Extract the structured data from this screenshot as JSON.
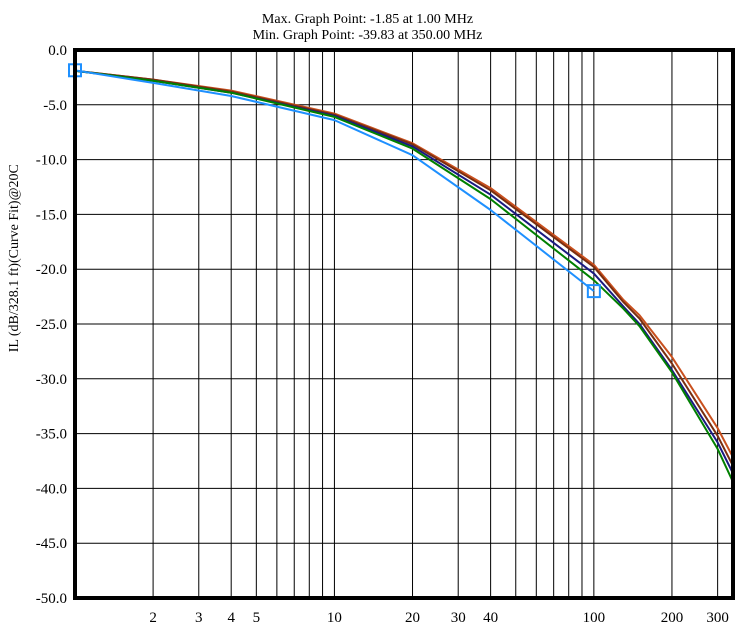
{
  "annotations": {
    "max_point": "Max. Graph Point: -1.85 at 1.00 MHz",
    "min_point": "Min. Graph Point: -39.83 at 350.00 MHz"
  },
  "chart_data": {
    "type": "line",
    "title": "",
    "xlabel": "",
    "ylabel": "IL (dB/328.1 ft)(Curve Fit)@20C",
    "x_scale": "log",
    "xlim": [
      1,
      350
    ],
    "ylim": [
      -50,
      0
    ],
    "grid": true,
    "x_ticks": [
      2,
      3,
      4,
      5,
      10,
      20,
      30,
      40,
      100,
      200,
      300
    ],
    "y_ticks": [
      0,
      -5,
      -10,
      -15,
      -20,
      -25,
      -30,
      -35,
      -40,
      -45,
      -50
    ],
    "y_tick_labels": [
      "0.0",
      "-5.0",
      "-10.0",
      "-15.0",
      "-20.0",
      "-25.0",
      "-30.0",
      "-35.0",
      "-40.0",
      "-45.0",
      "-50.0"
    ],
    "series": [
      {
        "color": "#C9501E",
        "x": [
          1,
          2,
          4,
          10,
          20,
          40,
          100,
          130,
          150,
          200,
          300,
          350
        ],
        "y": [
          -1.9,
          -2.7,
          -3.7,
          -5.8,
          -8.5,
          -12.6,
          -19.6,
          -22.8,
          -24.2,
          -28.0,
          -34.5,
          -37.5
        ]
      },
      {
        "color": "#7A2E10",
        "x": [
          1,
          2,
          4,
          10,
          20,
          40,
          100,
          130,
          150,
          200,
          300,
          350
        ],
        "y": [
          -1.9,
          -2.7,
          -3.8,
          -5.9,
          -8.6,
          -12.8,
          -19.8,
          -23.0,
          -24.5,
          -28.6,
          -35.2,
          -38.3
        ]
      },
      {
        "color": "#1A1A80",
        "x": [
          1,
          2,
          4,
          10,
          20,
          40,
          100,
          130,
          150,
          200,
          300,
          350
        ],
        "y": [
          -1.9,
          -2.8,
          -3.9,
          -6.0,
          -8.8,
          -13.2,
          -20.4,
          -23.4,
          -25.0,
          -29.2,
          -35.8,
          -39.0
        ]
      },
      {
        "color": "#008000",
        "x": [
          1,
          2,
          4,
          10,
          20,
          40,
          100,
          130,
          150,
          200,
          300,
          350
        ],
        "y": [
          -1.9,
          -2.8,
          -3.9,
          -6.1,
          -9.0,
          -13.6,
          -21.0,
          -23.6,
          -25.2,
          -29.4,
          -36.4,
          -39.8
        ]
      },
      {
        "color": "#1E90FF",
        "x": [
          1,
          2,
          4,
          10,
          20,
          40,
          100
        ],
        "y": [
          -1.85,
          -3.0,
          -4.2,
          -6.4,
          -9.6,
          -14.6,
          -22.0
        ]
      }
    ],
    "markers": [
      {
        "x": 1,
        "y": -1.85,
        "color": "#1E90FF"
      },
      {
        "x": 100,
        "y": -22.0,
        "color": "#1E90FF"
      }
    ]
  }
}
